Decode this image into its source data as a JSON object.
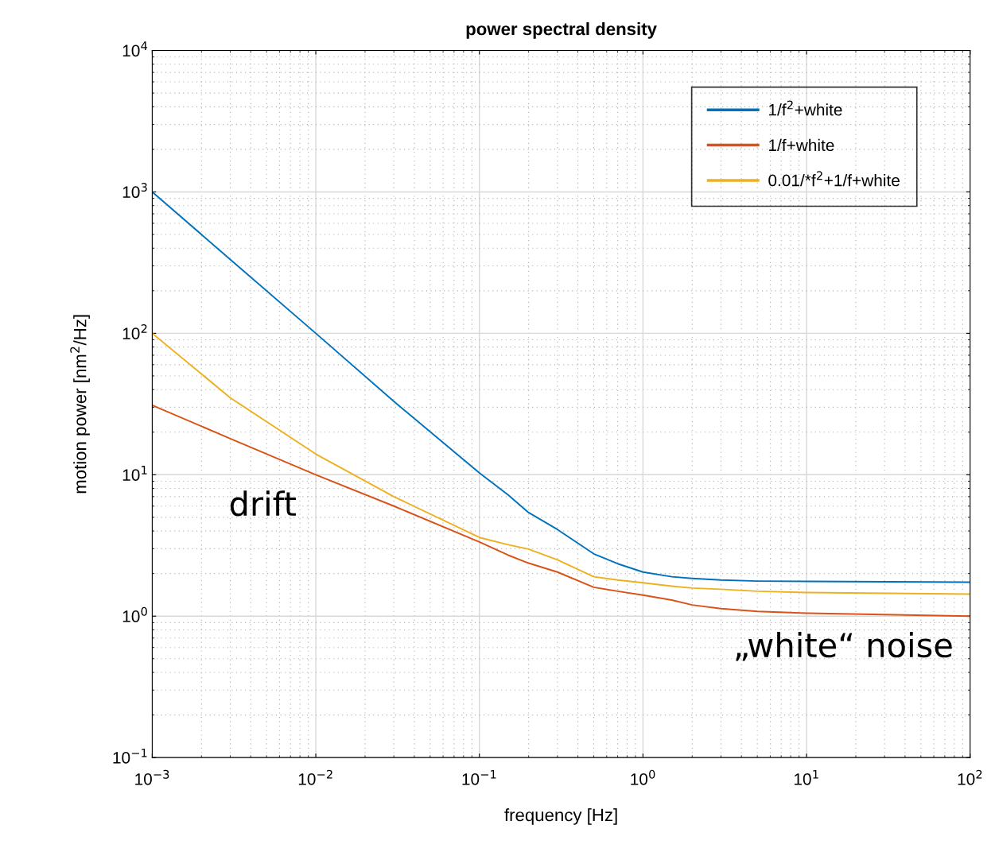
{
  "chart_data": {
    "type": "line",
    "title": "power spectral density",
    "xlabel": "frequency [Hz]",
    "ylabel": "motion power [nm$^{2}$/Hz]",
    "log": "xy",
    "x": [
      0.001,
      0.003,
      0.01,
      0.03,
      0.1,
      0.15,
      0.2,
      0.3,
      0.5,
      0.7,
      1,
      1.5,
      2,
      3,
      5,
      10,
      100
    ],
    "series": [
      {
        "name": "1/f$^{2}$+white",
        "color": "#0072bd",
        "values": [
          1000,
          333,
          100,
          33,
          10.3,
          7.2,
          5.4,
          4.1,
          2.76,
          2.35,
          2.05,
          1.9,
          1.85,
          1.8,
          1.77,
          1.76,
          1.74
        ]
      },
      {
        "name": "1/f+white",
        "color": "#d95319",
        "values": [
          31,
          18,
          10,
          6,
          3.35,
          2.7,
          2.37,
          2.05,
          1.6,
          1.5,
          1.41,
          1.3,
          1.2,
          1.13,
          1.08,
          1.05,
          1.0
        ]
      },
      {
        "name": "0.01/*f$^{2}$+1/f+white",
        "color": "#edb120",
        "values": [
          100,
          35,
          14,
          7,
          3.6,
          3.2,
          2.98,
          2.5,
          1.9,
          1.8,
          1.72,
          1.63,
          1.58,
          1.55,
          1.5,
          1.47,
          1.43
        ]
      }
    ],
    "xlim": [
      0.001,
      100
    ],
    "ylim": [
      0.1,
      10000
    ],
    "xticks": [
      {
        "value": 0.001,
        "label": "10$^{−3}$"
      },
      {
        "value": 0.01,
        "label": "10$^{−2}$"
      },
      {
        "value": 0.1,
        "label": "10$^{−1}$"
      },
      {
        "value": 1,
        "label": "10$^{0}$"
      },
      {
        "value": 10,
        "label": "10$^{1}$"
      },
      {
        "value": 100,
        "label": "10$^{2}$"
      }
    ],
    "yticks": [
      {
        "value": 0.1,
        "label": "10$^{−1}$"
      },
      {
        "value": 1,
        "label": "10$^{0}$"
      },
      {
        "value": 10,
        "label": "10$^{1}$"
      },
      {
        "value": 100,
        "label": "10$^{2}$"
      },
      {
        "value": 1000,
        "label": "10$^{3}$"
      },
      {
        "value": 10000,
        "label": "10$^{4}$"
      }
    ],
    "grid": true,
    "legend": "top right",
    "line_style": "solid",
    "annotations": [
      "drift",
      "„white“ noise"
    ]
  }
}
